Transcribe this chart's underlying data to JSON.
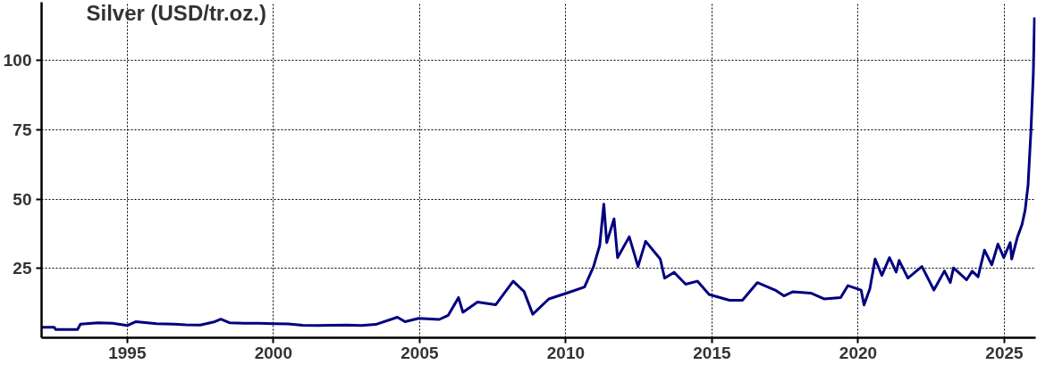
{
  "chart_data": {
    "type": "line",
    "title": "Silver (USD/tr.oz.)",
    "x": [
      1992.07,
      1992.5,
      1992.55,
      1993.3,
      1993.4,
      1994.0,
      1994.5,
      1995.0,
      1995.3,
      1996.0,
      1996.6,
      1997.0,
      1997.5,
      1998.0,
      1998.2,
      1998.5,
      1999.0,
      1999.5,
      2000.0,
      2000.5,
      2001.0,
      2001.5,
      2002.0,
      2002.5,
      2003.0,
      2003.5,
      2004.24,
      2004.5,
      2004.97,
      2005.67,
      2005.98,
      2006.33,
      2006.48,
      2006.98,
      2007.6,
      2008.2,
      2008.57,
      2008.87,
      2009.42,
      2010.03,
      2010.64,
      2010.95,
      2011.16,
      2011.3,
      2011.4,
      2011.65,
      2011.77,
      2012.17,
      2012.47,
      2012.73,
      2013.23,
      2013.38,
      2013.7,
      2014.1,
      2014.5,
      2014.9,
      2015.6,
      2016.04,
      2016.55,
      2017.16,
      2017.46,
      2017.77,
      2018.38,
      2018.83,
      2019.4,
      2019.65,
      2020.1,
      2020.2,
      2020.4,
      2020.58,
      2020.81,
      2021.07,
      2021.3,
      2021.4,
      2021.7,
      2022.18,
      2022.59,
      2022.95,
      2023.15,
      2023.26,
      2023.71,
      2023.9,
      2024.1,
      2024.32,
      2024.57,
      2024.78,
      2024.98,
      2025.2,
      2025.25,
      2025.45,
      2025.6,
      2025.71,
      2025.81,
      2025.91,
      2025.99,
      2026.03
    ],
    "series": [
      {
        "color": "#000080",
        "values": [
          3.8,
          3.8,
          3.0,
          3.0,
          4.9,
          5.4,
          5.2,
          4.4,
          5.8,
          5.1,
          4.9,
          4.7,
          4.6,
          5.8,
          6.7,
          5.4,
          5.2,
          5.2,
          5.1,
          5.0,
          4.5,
          4.4,
          4.5,
          4.6,
          4.4,
          4.8,
          7.4,
          5.8,
          7.0,
          6.6,
          8.1,
          14.5,
          9.2,
          12.9,
          11.9,
          20.4,
          16.7,
          8.5,
          14.0,
          16.1,
          18.3,
          25.7,
          33.3,
          48.2,
          34.3,
          42.9,
          28.9,
          36.4,
          25.7,
          34.8,
          28.4,
          21.5,
          23.6,
          19.3,
          20.4,
          15.6,
          13.5,
          13.5,
          19.9,
          17.2,
          15.1,
          16.6,
          16.1,
          14.0,
          14.5,
          18.8,
          17.2,
          11.8,
          17.7,
          28.4,
          22.5,
          28.9,
          23.7,
          27.9,
          21.5,
          25.7,
          17.2,
          24.1,
          19.9,
          25.2,
          20.9,
          24.0,
          22.0,
          31.6,
          26.3,
          33.8,
          28.9,
          34.3,
          28.4,
          36.4,
          40.7,
          46.0,
          55.0,
          74.9,
          95.2,
          115.5
        ]
      }
    ],
    "xlim": [
      1992.07,
      2026.07
    ],
    "ylim": [
      0,
      121
    ],
    "xticks": [
      1995,
      2000,
      2005,
      2010,
      2015,
      2020,
      2025
    ],
    "yticks": [
      25,
      50,
      75,
      100
    ],
    "grid": true,
    "line_style": "solid"
  }
}
